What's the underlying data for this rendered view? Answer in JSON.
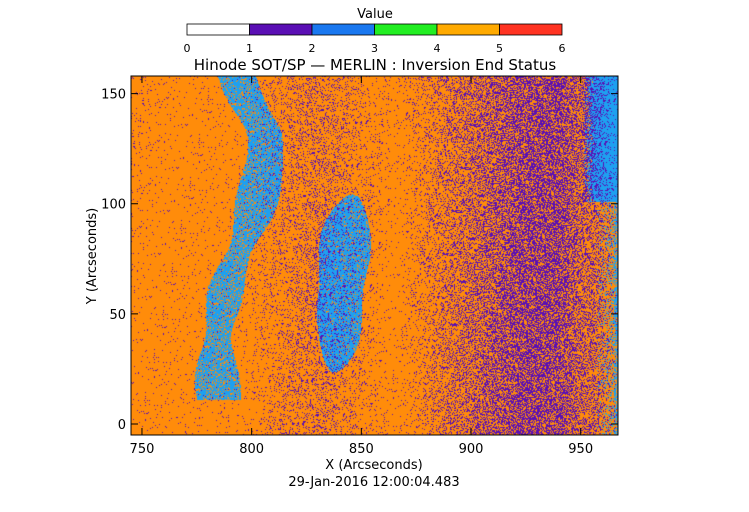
{
  "colorbar": {
    "label": "Value",
    "min": 0,
    "max": 6,
    "ticks": [
      "0",
      "1",
      "2",
      "3",
      "4",
      "5",
      "6"
    ],
    "colors": [
      "#ffffff",
      "#5a0fb4",
      "#1a78f0",
      "#22ee22",
      "#ffaa00",
      "#ff3322"
    ]
  },
  "chart_data": {
    "type": "heatmap",
    "title": "Hinode SOT/SP — MERLIN : Inversion End Status",
    "xlabel": "X (Arcseconds)",
    "ylabel": "Y (Arcseconds)",
    "xlim": [
      745,
      967
    ],
    "ylim": [
      -5,
      158
    ],
    "xticks": [
      750,
      800,
      850,
      900,
      950
    ],
    "yticks": [
      0,
      50,
      100,
      150
    ],
    "dominant_values": {
      "background": 4,
      "filament_regions": 2,
      "speckle_regions": 1
    },
    "colors": {
      "value_1": "#5a0fb4",
      "value_2": "#1ea0f0",
      "value_4": "#ff8c0a"
    }
  },
  "footer": {
    "timestamp": "29-Jan-2016 12:00:04.483"
  }
}
